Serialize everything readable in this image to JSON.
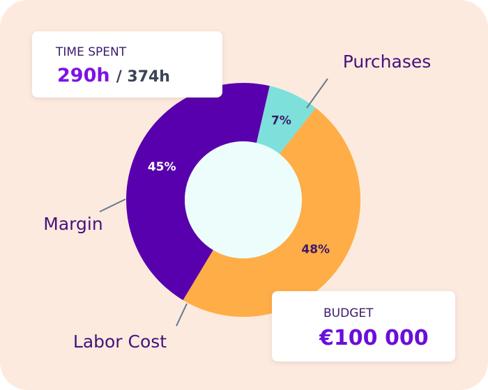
{
  "chart_data": {
    "type": "donut",
    "categories": [
      "Purchases",
      "Labor Cost",
      "Margin"
    ],
    "values": [
      7,
      48,
      45
    ],
    "value_labels": [
      "7%",
      "48%",
      "45%"
    ],
    "colors": [
      "#7ee0da",
      "#ffad47",
      "#5800ad"
    ],
    "hole_color": "#ecfdfb"
  },
  "cards": {
    "time_spent": {
      "title": "TIME SPENT",
      "value": "290h",
      "total": "/ 374h"
    },
    "budget": {
      "title": "BUDGET",
      "value": "€100 000"
    }
  }
}
